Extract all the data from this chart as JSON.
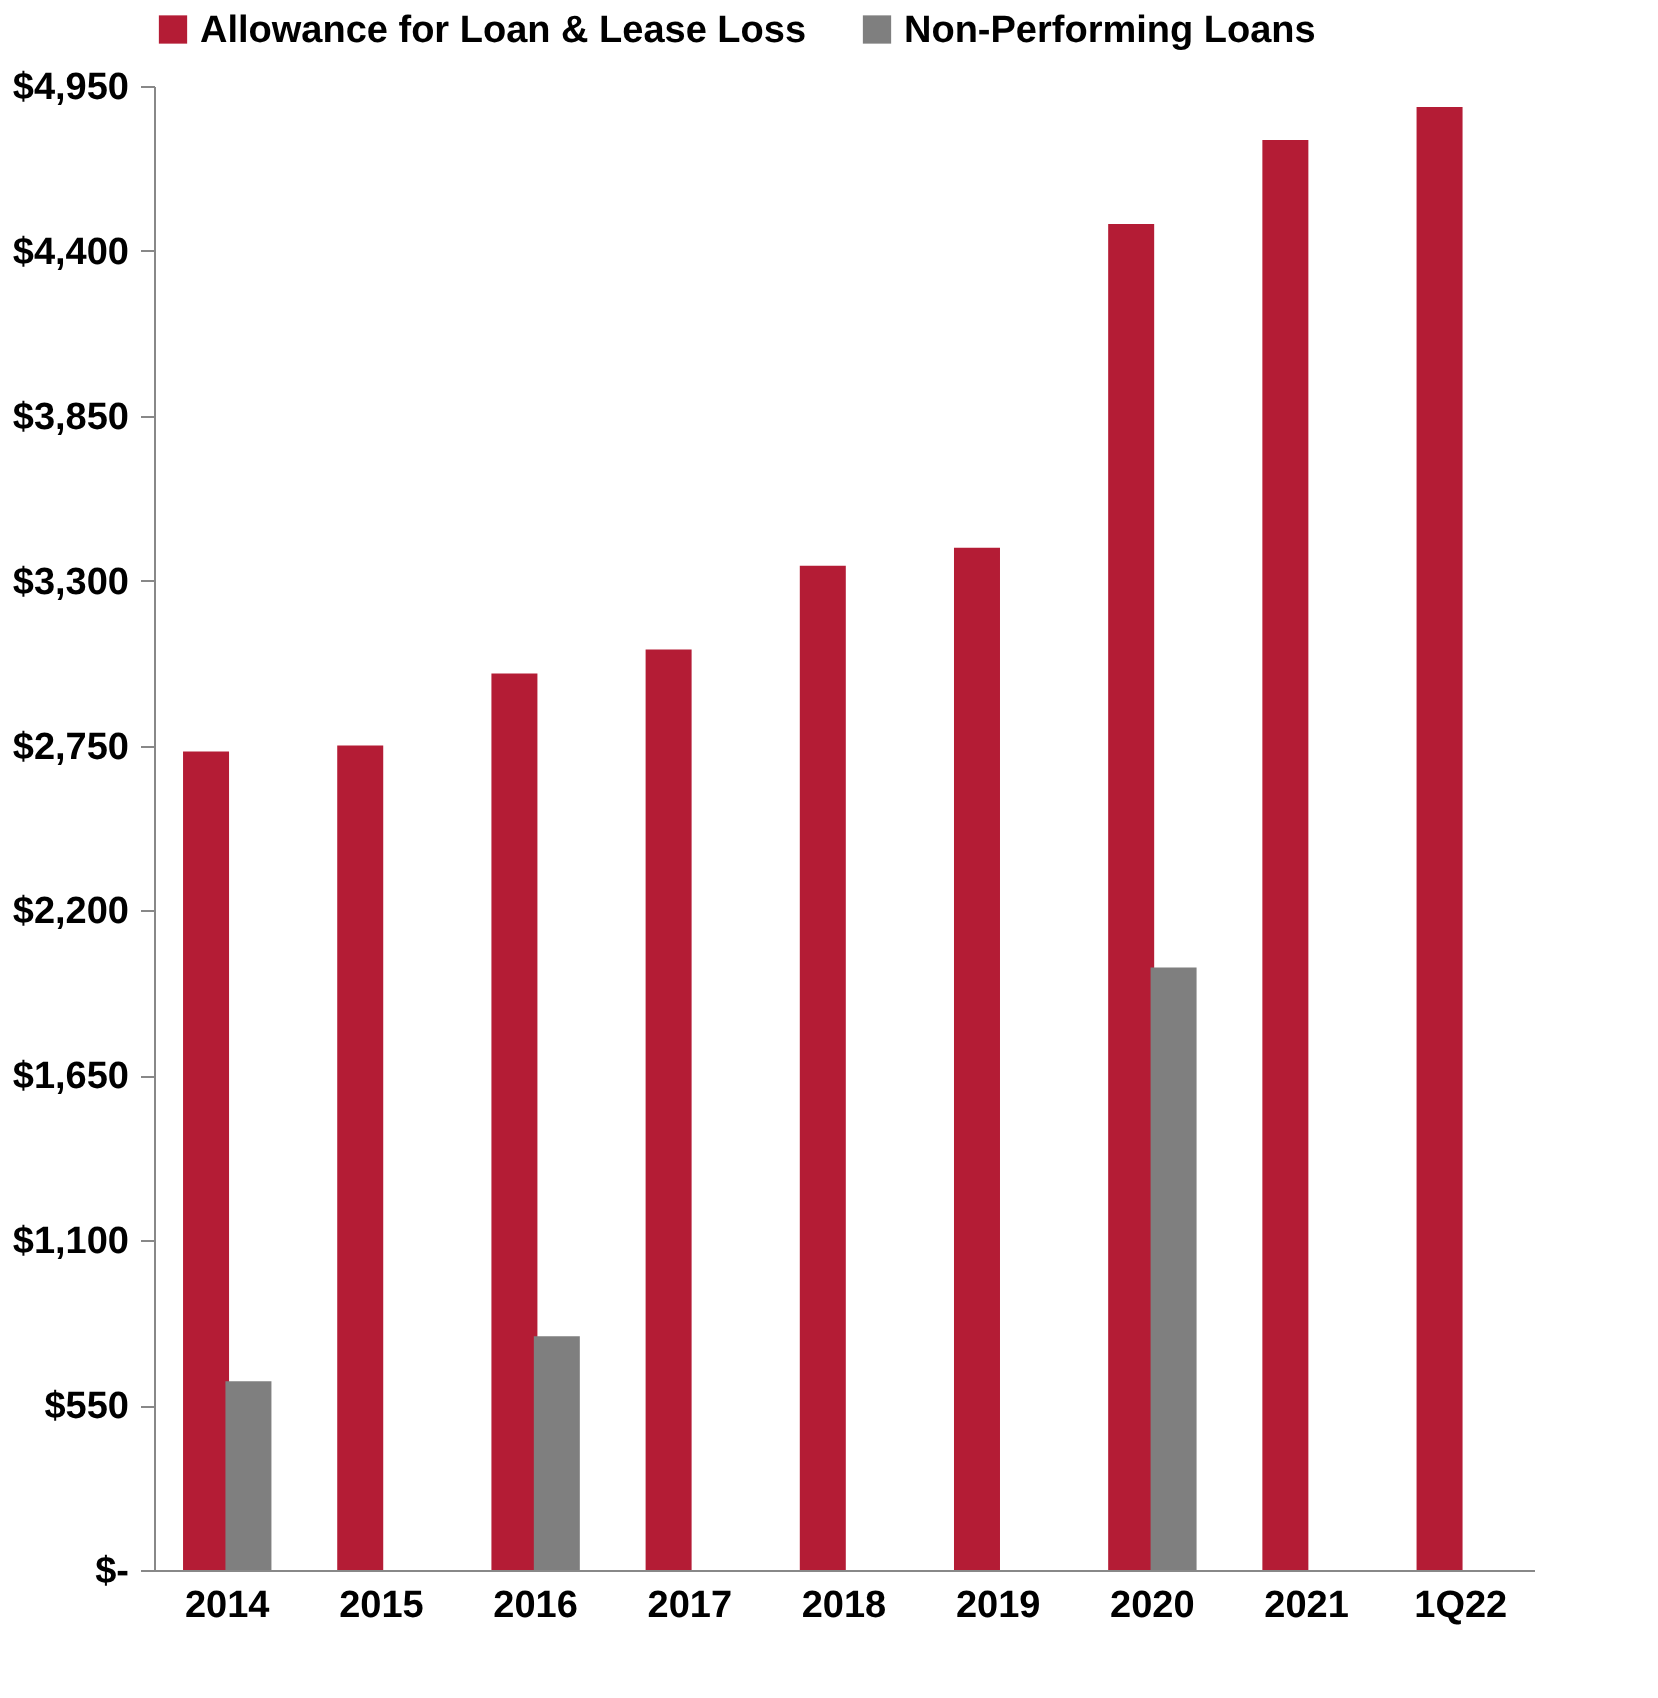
{
  "chart_data": {
    "type": "bar",
    "categories": [
      "2014",
      "2015",
      "2016",
      "2017",
      "2018",
      "2019",
      "2020",
      "2021",
      "1Q22"
    ],
    "series": [
      {
        "name": "Allowance for Loan & Lease Loss",
        "color": "#b41c35",
        "values": [
          2730,
          2750,
          2990,
          3070,
          3350,
          3410,
          4490,
          4770,
          4880
        ]
      },
      {
        "name": "Non-Performing Loans",
        "color": "#7f7f7f",
        "values": [
          630,
          null,
          780,
          null,
          null,
          null,
          2010,
          null,
          null
        ]
      }
    ],
    "ylim": [
      0,
      4950
    ],
    "yticks": [
      {
        "value": 0,
        "label": "$-"
      },
      {
        "value": 550,
        "label": "$550"
      },
      {
        "value": 1100,
        "label": "$1,100"
      },
      {
        "value": 1650,
        "label": "$1,650"
      },
      {
        "value": 2200,
        "label": "$2,200"
      },
      {
        "value": 2750,
        "label": "$2,750"
      },
      {
        "value": 3300,
        "label": "$3,300"
      },
      {
        "value": 3850,
        "label": "$3,850"
      },
      {
        "value": 4400,
        "label": "$4,400"
      },
      {
        "value": 4950,
        "label": "$4,950"
      }
    ],
    "grid": false,
    "legend": "top"
  }
}
